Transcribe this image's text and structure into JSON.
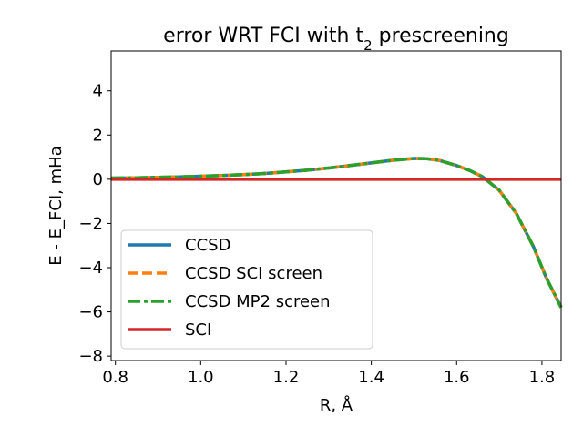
{
  "chart_data": {
    "type": "line",
    "title": "error WRT FCI with t",
    "title_subscript": "2",
    "title_suffix": " prescreening",
    "xlabel": "R, Å",
    "ylabel": "E - E_FCI, mHa",
    "xlim": [
      0.79,
      1.845
    ],
    "ylim": [
      -8.2,
      5.8
    ],
    "xticks": [
      0.8,
      1.0,
      1.2,
      1.4,
      1.6,
      1.8
    ],
    "xtick_labels": [
      "0.8",
      "1.0",
      "1.2",
      "1.4",
      "1.6",
      "1.8"
    ],
    "yticks": [
      4,
      2,
      0,
      -2,
      -4,
      -6,
      -8
    ],
    "ytick_labels": [
      "4",
      "2",
      "0",
      "−2",
      "−4",
      "−6",
      "−8"
    ],
    "grid": false,
    "legend_position": "lower-left",
    "x": [
      0.79,
      0.85,
      0.9,
      0.95,
      1.0,
      1.05,
      1.1,
      1.15,
      1.2,
      1.25,
      1.3,
      1.35,
      1.4,
      1.45,
      1.5,
      1.53,
      1.56,
      1.6,
      1.63,
      1.66,
      1.7,
      1.74,
      1.78,
      1.81,
      1.845
    ],
    "series": [
      {
        "name": "CCSD",
        "color": "#1f77b4",
        "style": "solid",
        "values": [
          0.05,
          0.07,
          0.09,
          0.11,
          0.14,
          0.17,
          0.21,
          0.26,
          0.33,
          0.41,
          0.51,
          0.62,
          0.74,
          0.86,
          0.94,
          0.93,
          0.85,
          0.62,
          0.4,
          0.12,
          -0.5,
          -1.55,
          -3.05,
          -4.45,
          -5.8
        ]
      },
      {
        "name": "CCSD SCI screen",
        "color": "#ff7f0e",
        "style": "dashed",
        "values": [
          0.05,
          0.07,
          0.09,
          0.11,
          0.14,
          0.17,
          0.21,
          0.26,
          0.33,
          0.41,
          0.51,
          0.62,
          0.74,
          0.86,
          0.94,
          0.93,
          0.85,
          0.62,
          0.4,
          0.12,
          -0.5,
          -1.55,
          -3.05,
          -4.45,
          -5.8
        ]
      },
      {
        "name": "CCSD MP2 screen",
        "color": "#2ca02c",
        "style": "dashdot",
        "values": [
          0.05,
          0.07,
          0.09,
          0.11,
          0.14,
          0.17,
          0.21,
          0.26,
          0.33,
          0.41,
          0.51,
          0.62,
          0.74,
          0.86,
          0.94,
          0.93,
          0.85,
          0.62,
          0.4,
          0.12,
          -0.5,
          -1.55,
          -3.05,
          -4.45,
          -5.8
        ]
      },
      {
        "name": "SCI",
        "color": "#d62728",
        "style": "solid",
        "values": [
          0,
          0,
          0,
          0,
          0,
          0,
          0,
          0,
          0,
          0,
          0,
          0,
          0,
          0,
          0,
          0,
          0,
          0,
          0,
          0,
          0,
          0,
          0,
          0,
          0
        ]
      }
    ]
  }
}
